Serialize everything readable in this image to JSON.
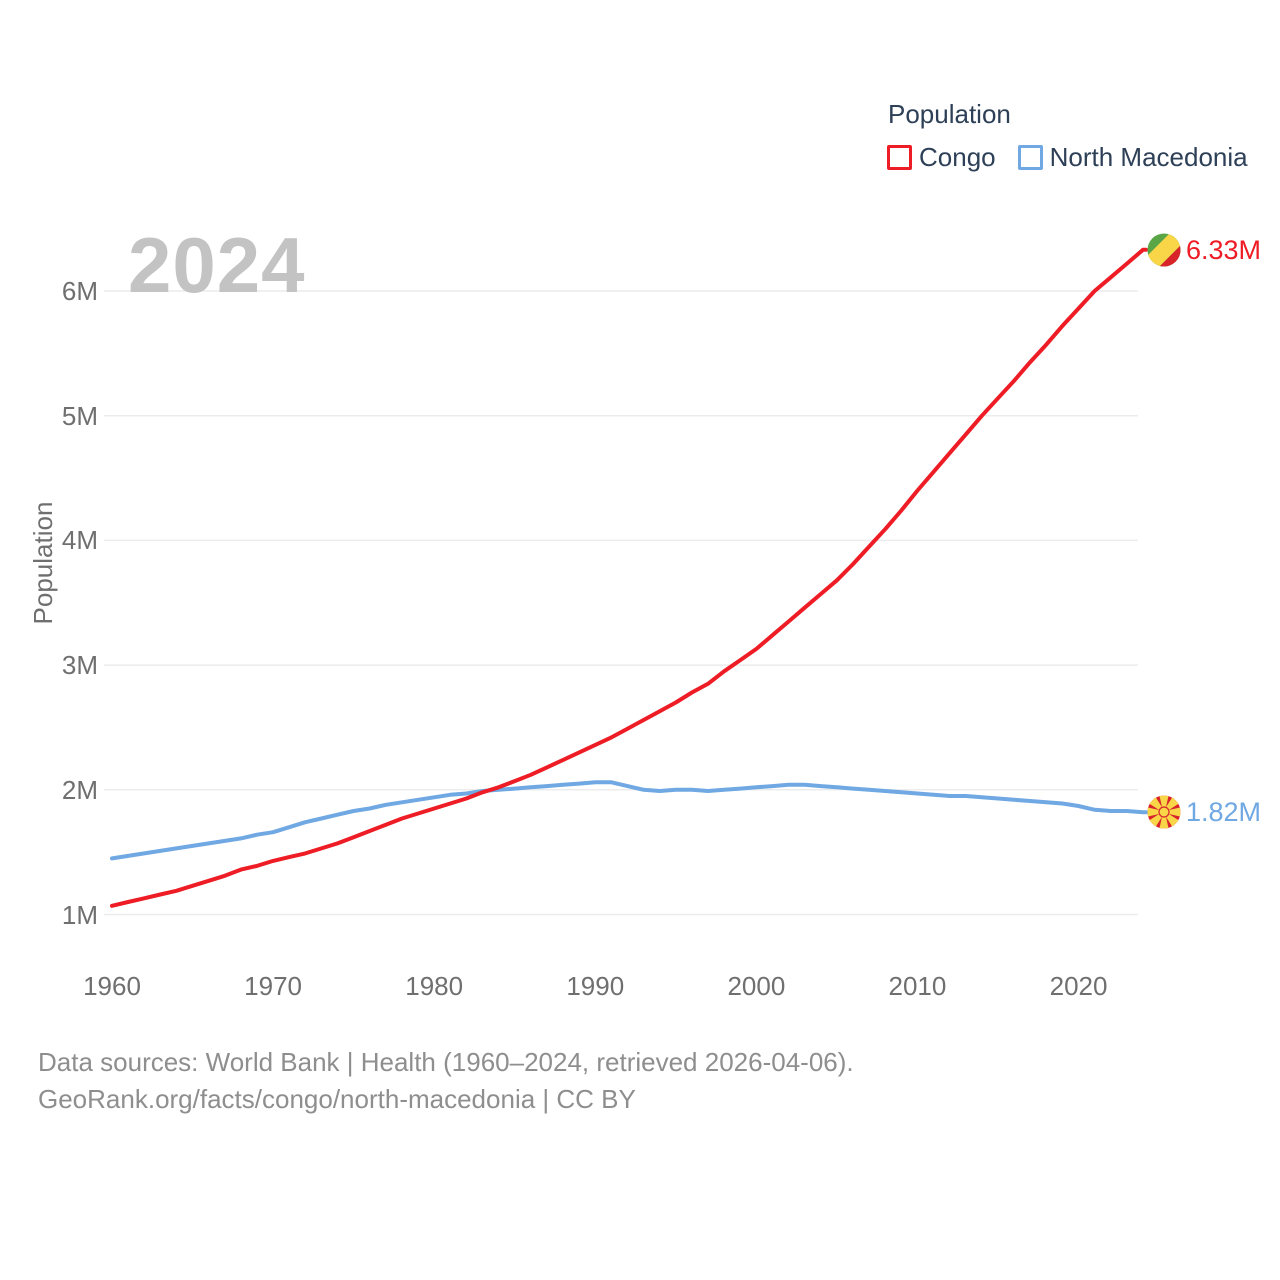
{
  "watermark": "2024",
  "legend": {
    "title": "Population",
    "items": [
      {
        "label": "Congo",
        "color": "#ee1c25"
      },
      {
        "label": "North Macedonia",
        "color": "#6fa8e2"
      }
    ]
  },
  "y_axis": {
    "label": "Population",
    "ticks": [
      "1M",
      "2M",
      "3M",
      "4M",
      "5M",
      "6M"
    ]
  },
  "x_axis": {
    "ticks": [
      1960,
      1970,
      1980,
      1990,
      2000,
      2010,
      2020
    ]
  },
  "end_labels": [
    {
      "series": "Congo",
      "text": "6.33M",
      "color": "#ee1c25",
      "flag": "congo-flag"
    },
    {
      "series": "North Macedonia",
      "text": "1.82M",
      "color": "#6fa8e2",
      "flag": "north-macedonia-flag"
    }
  ],
  "footer": {
    "line1": "Data sources: World Bank | Health (1960–2024, retrieved 2026-04-06).",
    "line2": "GeoRank.org/facts/congo/north-macedonia | CC BY"
  },
  "chart_data": {
    "type": "line",
    "title": "Population",
    "xlabel": "",
    "ylabel": "Population",
    "units": "millions",
    "xlim": [
      1960,
      2024
    ],
    "ylim": [
      0.85,
      6.45
    ],
    "yticks_millions": [
      1,
      2,
      3,
      4,
      5,
      6
    ],
    "grid": "horizontal-only",
    "legend_position": "top-right",
    "x": [
      1960,
      1961,
      1962,
      1963,
      1964,
      1965,
      1966,
      1967,
      1968,
      1969,
      1970,
      1971,
      1972,
      1973,
      1974,
      1975,
      1976,
      1977,
      1978,
      1979,
      1980,
      1981,
      1982,
      1983,
      1984,
      1985,
      1986,
      1987,
      1988,
      1989,
      1990,
      1991,
      1992,
      1993,
      1994,
      1995,
      1996,
      1997,
      1998,
      1999,
      2000,
      2001,
      2002,
      2003,
      2004,
      2005,
      2006,
      2007,
      2008,
      2009,
      2010,
      2011,
      2012,
      2013,
      2014,
      2015,
      2016,
      2017,
      2018,
      2019,
      2020,
      2021,
      2022,
      2023,
      2024
    ],
    "series": [
      {
        "name": "Congo",
        "color": "#ee1c25",
        "end_value_label": "6.33M",
        "values": [
          1.07,
          1.1,
          1.13,
          1.16,
          1.19,
          1.23,
          1.27,
          1.31,
          1.36,
          1.39,
          1.43,
          1.46,
          1.49,
          1.53,
          1.57,
          1.62,
          1.67,
          1.72,
          1.77,
          1.81,
          1.85,
          1.89,
          1.93,
          1.98,
          2.02,
          2.07,
          2.12,
          2.18,
          2.24,
          2.3,
          2.36,
          2.42,
          2.49,
          2.56,
          2.63,
          2.7,
          2.78,
          2.85,
          2.95,
          3.04,
          3.13,
          3.24,
          3.35,
          3.46,
          3.57,
          3.68,
          3.81,
          3.95,
          4.09,
          4.24,
          4.4,
          4.55,
          4.7,
          4.85,
          5.0,
          5.14,
          5.28,
          5.43,
          5.57,
          5.72,
          5.86,
          6.0,
          6.11,
          6.22,
          6.33
        ]
      },
      {
        "name": "North Macedonia",
        "color": "#6fa8e2",
        "end_value_label": "1.82M",
        "values": [
          1.45,
          1.47,
          1.49,
          1.51,
          1.53,
          1.55,
          1.57,
          1.59,
          1.61,
          1.64,
          1.66,
          1.7,
          1.74,
          1.77,
          1.8,
          1.83,
          1.85,
          1.88,
          1.9,
          1.92,
          1.94,
          1.96,
          1.97,
          1.99,
          2.0,
          2.01,
          2.02,
          2.03,
          2.04,
          2.05,
          2.06,
          2.06,
          2.03,
          2.0,
          1.99,
          2.0,
          2.0,
          1.99,
          2.0,
          2.01,
          2.02,
          2.03,
          2.04,
          2.04,
          2.03,
          2.02,
          2.01,
          2.0,
          1.99,
          1.98,
          1.97,
          1.96,
          1.95,
          1.95,
          1.94,
          1.93,
          1.92,
          1.91,
          1.9,
          1.89,
          1.87,
          1.84,
          1.83,
          1.83,
          1.82
        ]
      }
    ]
  }
}
